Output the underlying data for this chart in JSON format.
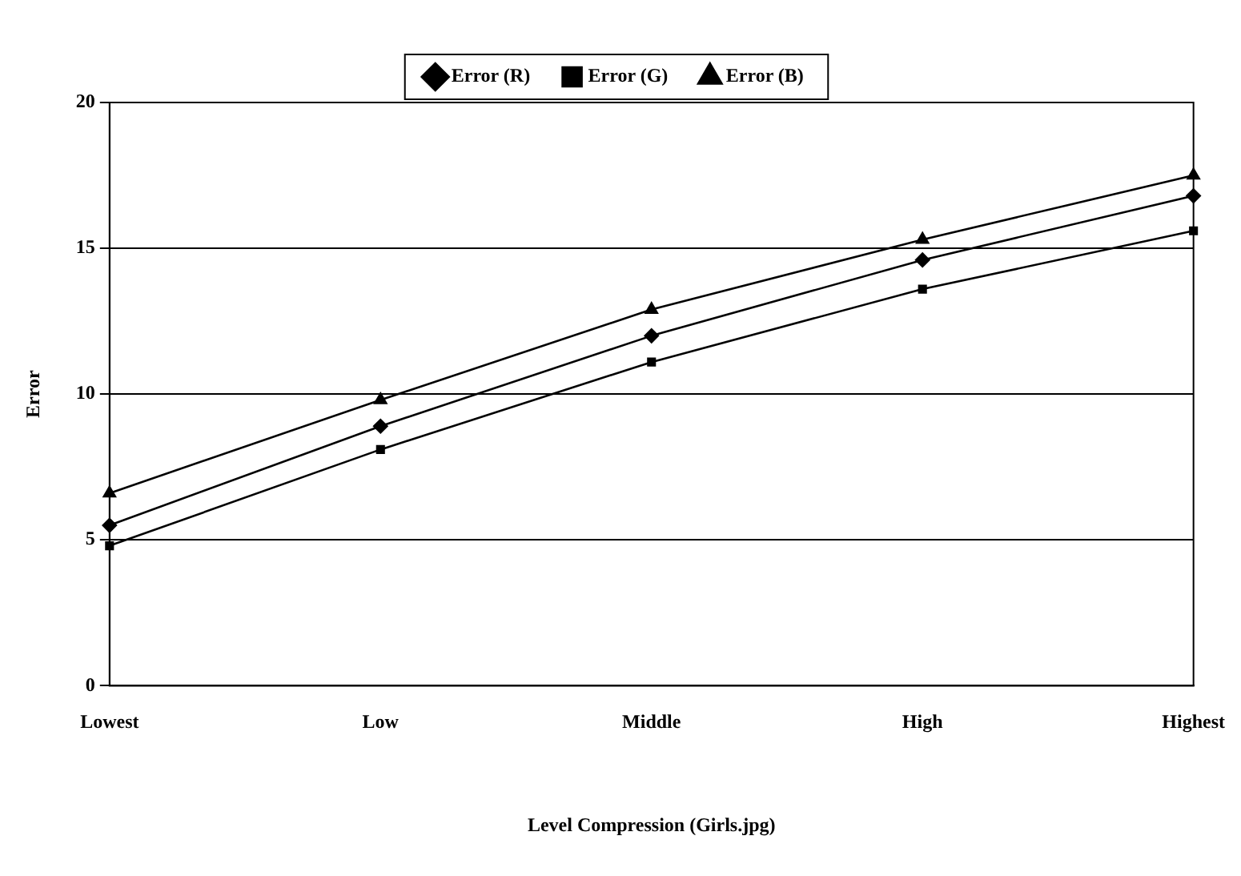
{
  "chart_data": {
    "type": "line",
    "xlabel": "Level Compression (Girls.jpg)",
    "ylabel": "Error",
    "categories": [
      "Lowest",
      "Low",
      "Middle",
      "High",
      "Highest"
    ],
    "series": [
      {
        "name": "Error (R)",
        "color": "#000000",
        "marker": "diamond",
        "values": [
          5.5,
          8.9,
          12.0,
          14.6,
          16.8
        ]
      },
      {
        "name": "Error (G)",
        "color": "#000000",
        "marker": "square",
        "values": [
          4.8,
          8.1,
          11.1,
          13.6,
          15.6
        ]
      },
      {
        "name": "Error (B)",
        "color": "#000000",
        "marker": "triangle",
        "values": [
          6.6,
          9.8,
          12.9,
          15.3,
          17.5
        ]
      }
    ],
    "ylim": [
      0,
      20
    ],
    "yticks": [
      0,
      5,
      10,
      15,
      20
    ],
    "grid": "y",
    "legend": "top",
    "line_style": "solid"
  }
}
